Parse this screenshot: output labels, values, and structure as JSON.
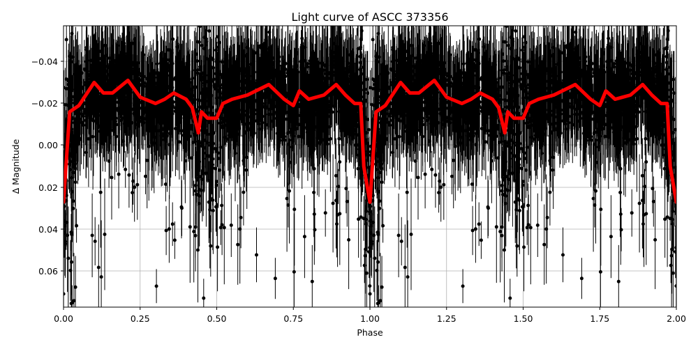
{
  "figure": {
    "title": "Light curve of ASCC 373356",
    "xlabel": "Phase",
    "ylabel": "Δ Magnitude",
    "xticks": [
      "0.00",
      "0.25",
      "0.50",
      "0.75",
      "1.00",
      "1.25",
      "1.50",
      "1.75",
      "2.00"
    ],
    "yticks": [
      "−0.04",
      "−0.02",
      "0.00",
      "0.02",
      "0.04",
      "0.06"
    ]
  },
  "colors": {
    "data_points": "#000000",
    "model_curve": "#ff0000",
    "grid": "#b0b0b0"
  },
  "chart_data": {
    "type": "scatter",
    "title": "Light curve of ASCC 373356",
    "xlabel": "Phase",
    "ylabel": "Δ Magnitude",
    "xlim": [
      0.0,
      2.0
    ],
    "ylim": [
      0.077,
      -0.057
    ],
    "y_inverted": true,
    "grid": true,
    "legend": null,
    "x_ticks": [
      0.0,
      0.25,
      0.5,
      0.75,
      1.0,
      1.25,
      1.5,
      1.75,
      2.0
    ],
    "y_ticks": [
      -0.04,
      -0.02,
      0.0,
      0.02,
      0.04,
      0.06
    ],
    "series": [
      {
        "name": "observations",
        "style": "black points with error bars",
        "description": "Dense phase-folded photometry, scatter roughly -0.05 to +0.077 mag, centered near -0.02 mag, deeper scatter near phases 0.45-0.5 and 1.0"
      },
      {
        "name": "binned model",
        "style": "red thick line",
        "x": [
          0.0,
          0.02,
          0.05,
          0.1,
          0.13,
          0.16,
          0.21,
          0.25,
          0.3,
          0.33,
          0.36,
          0.4,
          0.42,
          0.44,
          0.45,
          0.47,
          0.5,
          0.52,
          0.55,
          0.6,
          0.67,
          0.72,
          0.75,
          0.77,
          0.8,
          0.85,
          0.89,
          0.92,
          0.95,
          0.97,
          0.98,
          1.0
        ],
        "values": [
          0.027,
          -0.016,
          -0.019,
          -0.03,
          -0.025,
          -0.025,
          -0.031,
          -0.023,
          -0.02,
          -0.022,
          -0.025,
          -0.022,
          -0.018,
          -0.006,
          -0.016,
          -0.013,
          -0.013,
          -0.02,
          -0.022,
          -0.024,
          -0.029,
          -0.022,
          -0.019,
          -0.026,
          -0.022,
          -0.024,
          -0.029,
          -0.024,
          -0.02,
          -0.02,
          0.01,
          0.027
        ]
      }
    ]
  }
}
